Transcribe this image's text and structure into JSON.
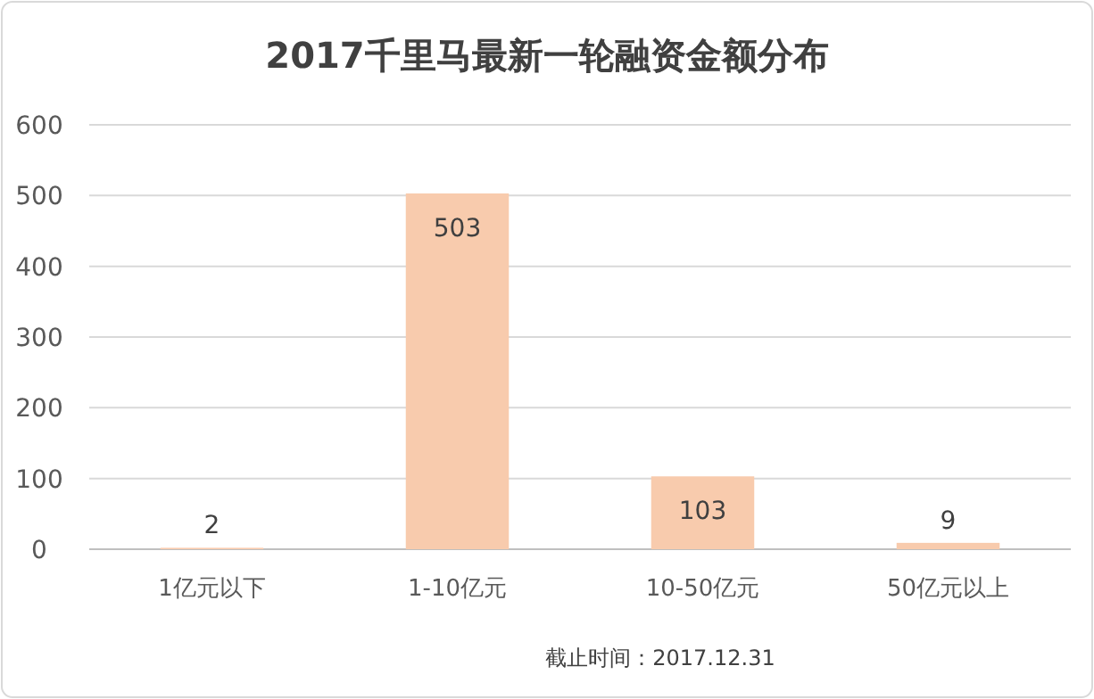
{
  "chart_data": {
    "type": "bar",
    "title": "2017千里马最新一轮融资金额分布",
    "categories": [
      "1亿元以下",
      "1-10亿元",
      "10-50亿元",
      "50亿元以上"
    ],
    "values": [
      2,
      503,
      103,
      9
    ],
    "color": "#f8cbad",
    "ylim": [
      0,
      600
    ],
    "yticks": [
      0,
      100,
      200,
      300,
      400,
      500,
      600
    ],
    "grid": "y",
    "data_labels": true,
    "annotations": [
      "截止时间：2017.12.31"
    ]
  }
}
